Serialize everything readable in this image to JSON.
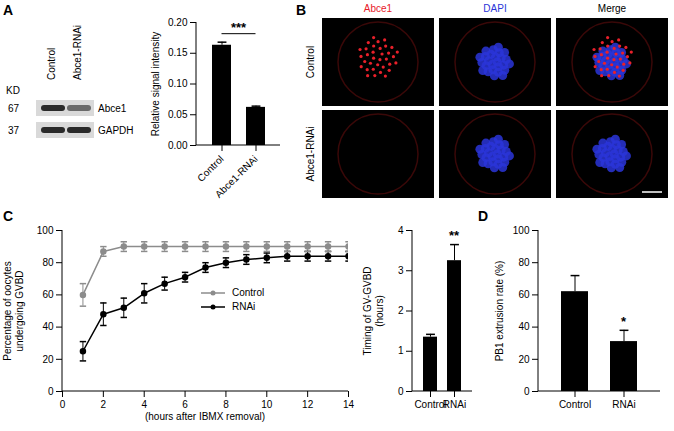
{
  "panel_labels": [
    "A",
    "B",
    "C",
    "D"
  ],
  "blot": {
    "unit": "KD",
    "lanes": [
      "Control",
      "Abce1-RNAi"
    ],
    "bands": [
      {
        "size": 67,
        "label": "Abce1"
      },
      {
        "size": 37,
        "label": "GAPDH"
      }
    ]
  },
  "microscopy": {
    "channels": [
      {
        "label": "Abce1",
        "color": "#e8202a"
      },
      {
        "label": "DAPI",
        "color": "#2a35d8"
      },
      {
        "label": "Merge",
        "color": "#000000"
      }
    ],
    "rows": [
      "Control",
      "Abce1-RNAi"
    ]
  },
  "chart_data": [
    {
      "type": "bar",
      "ylabel": "Relative signal intensity",
      "categories": [
        "Control",
        "Abce1-RNAi"
      ],
      "values": [
        0.163,
        0.062
      ],
      "errors": [
        0.005,
        0.002
      ],
      "color": "#000000",
      "ylim": [
        0,
        0.2
      ],
      "yticks": [
        {
          "value": 0,
          "label": "0.00"
        },
        0.05,
        {
          "value": 0.1,
          "label": "0.10"
        },
        0.15,
        {
          "value": 0.2,
          "label": "0.20"
        }
      ],
      "annotations": [
        {
          "text": "***",
          "span": [
            "Control",
            "Abce1-RNAi"
          ]
        }
      ]
    },
    {
      "type": "line",
      "xlabel": "(hours after IBMX removal)",
      "ylabel": "Percentage of oocytes\nundergoing GVBD",
      "x": [
        1,
        2,
        3,
        4,
        5,
        6,
        7,
        8,
        9,
        10,
        11,
        12,
        13,
        14
      ],
      "series": [
        {
          "name": "Control",
          "color": "#8c8c8c",
          "marker": "circle",
          "values": [
            60,
            87,
            90,
            90,
            90,
            90,
            90,
            90,
            90,
            90,
            90,
            90,
            90,
            90
          ],
          "errors": [
            7,
            3,
            3,
            3,
            3,
            3,
            3,
            3,
            3,
            3,
            3,
            3,
            3,
            3
          ]
        },
        {
          "name": "RNAi",
          "color": "#000000",
          "marker": "circle",
          "values": [
            25,
            48,
            52,
            61,
            67,
            71,
            77,
            80,
            82,
            83,
            84,
            84,
            84,
            84
          ],
          "errors": [
            6,
            7,
            6,
            6,
            4,
            3,
            3,
            3,
            3,
            3,
            3,
            3,
            3,
            3
          ]
        }
      ],
      "xlim": [
        0,
        14
      ],
      "xticks": [
        0,
        2,
        4,
        6,
        8,
        10,
        12,
        14
      ],
      "ylim": [
        0,
        100
      ],
      "yticks": [
        0,
        20,
        40,
        60,
        80,
        100
      ],
      "legend": "right"
    },
    {
      "type": "bar",
      "ylabel": "Timing of GV-GVBD\n(hours)",
      "categories": [
        "Control",
        "RNAi"
      ],
      "values": [
        1.35,
        3.25
      ],
      "errors": [
        0.07,
        0.4
      ],
      "color": "#000000",
      "ylim": [
        0,
        4
      ],
      "yticks": [
        0,
        1,
        2,
        3,
        4
      ],
      "annotations": [
        {
          "text": "**",
          "category": "RNAi"
        }
      ]
    },
    {
      "type": "bar",
      "ylabel": "PB1 extrusion rate (%)",
      "categories": [
        "Control",
        "RNAi"
      ],
      "values": [
        62,
        31
      ],
      "errors": [
        10,
        7
      ],
      "color": "#000000",
      "ylim": [
        0,
        100
      ],
      "yticks": [
        0,
        20,
        40,
        60,
        80,
        100
      ],
      "annotations": [
        {
          "text": "*",
          "category": "RNAi"
        }
      ]
    }
  ]
}
